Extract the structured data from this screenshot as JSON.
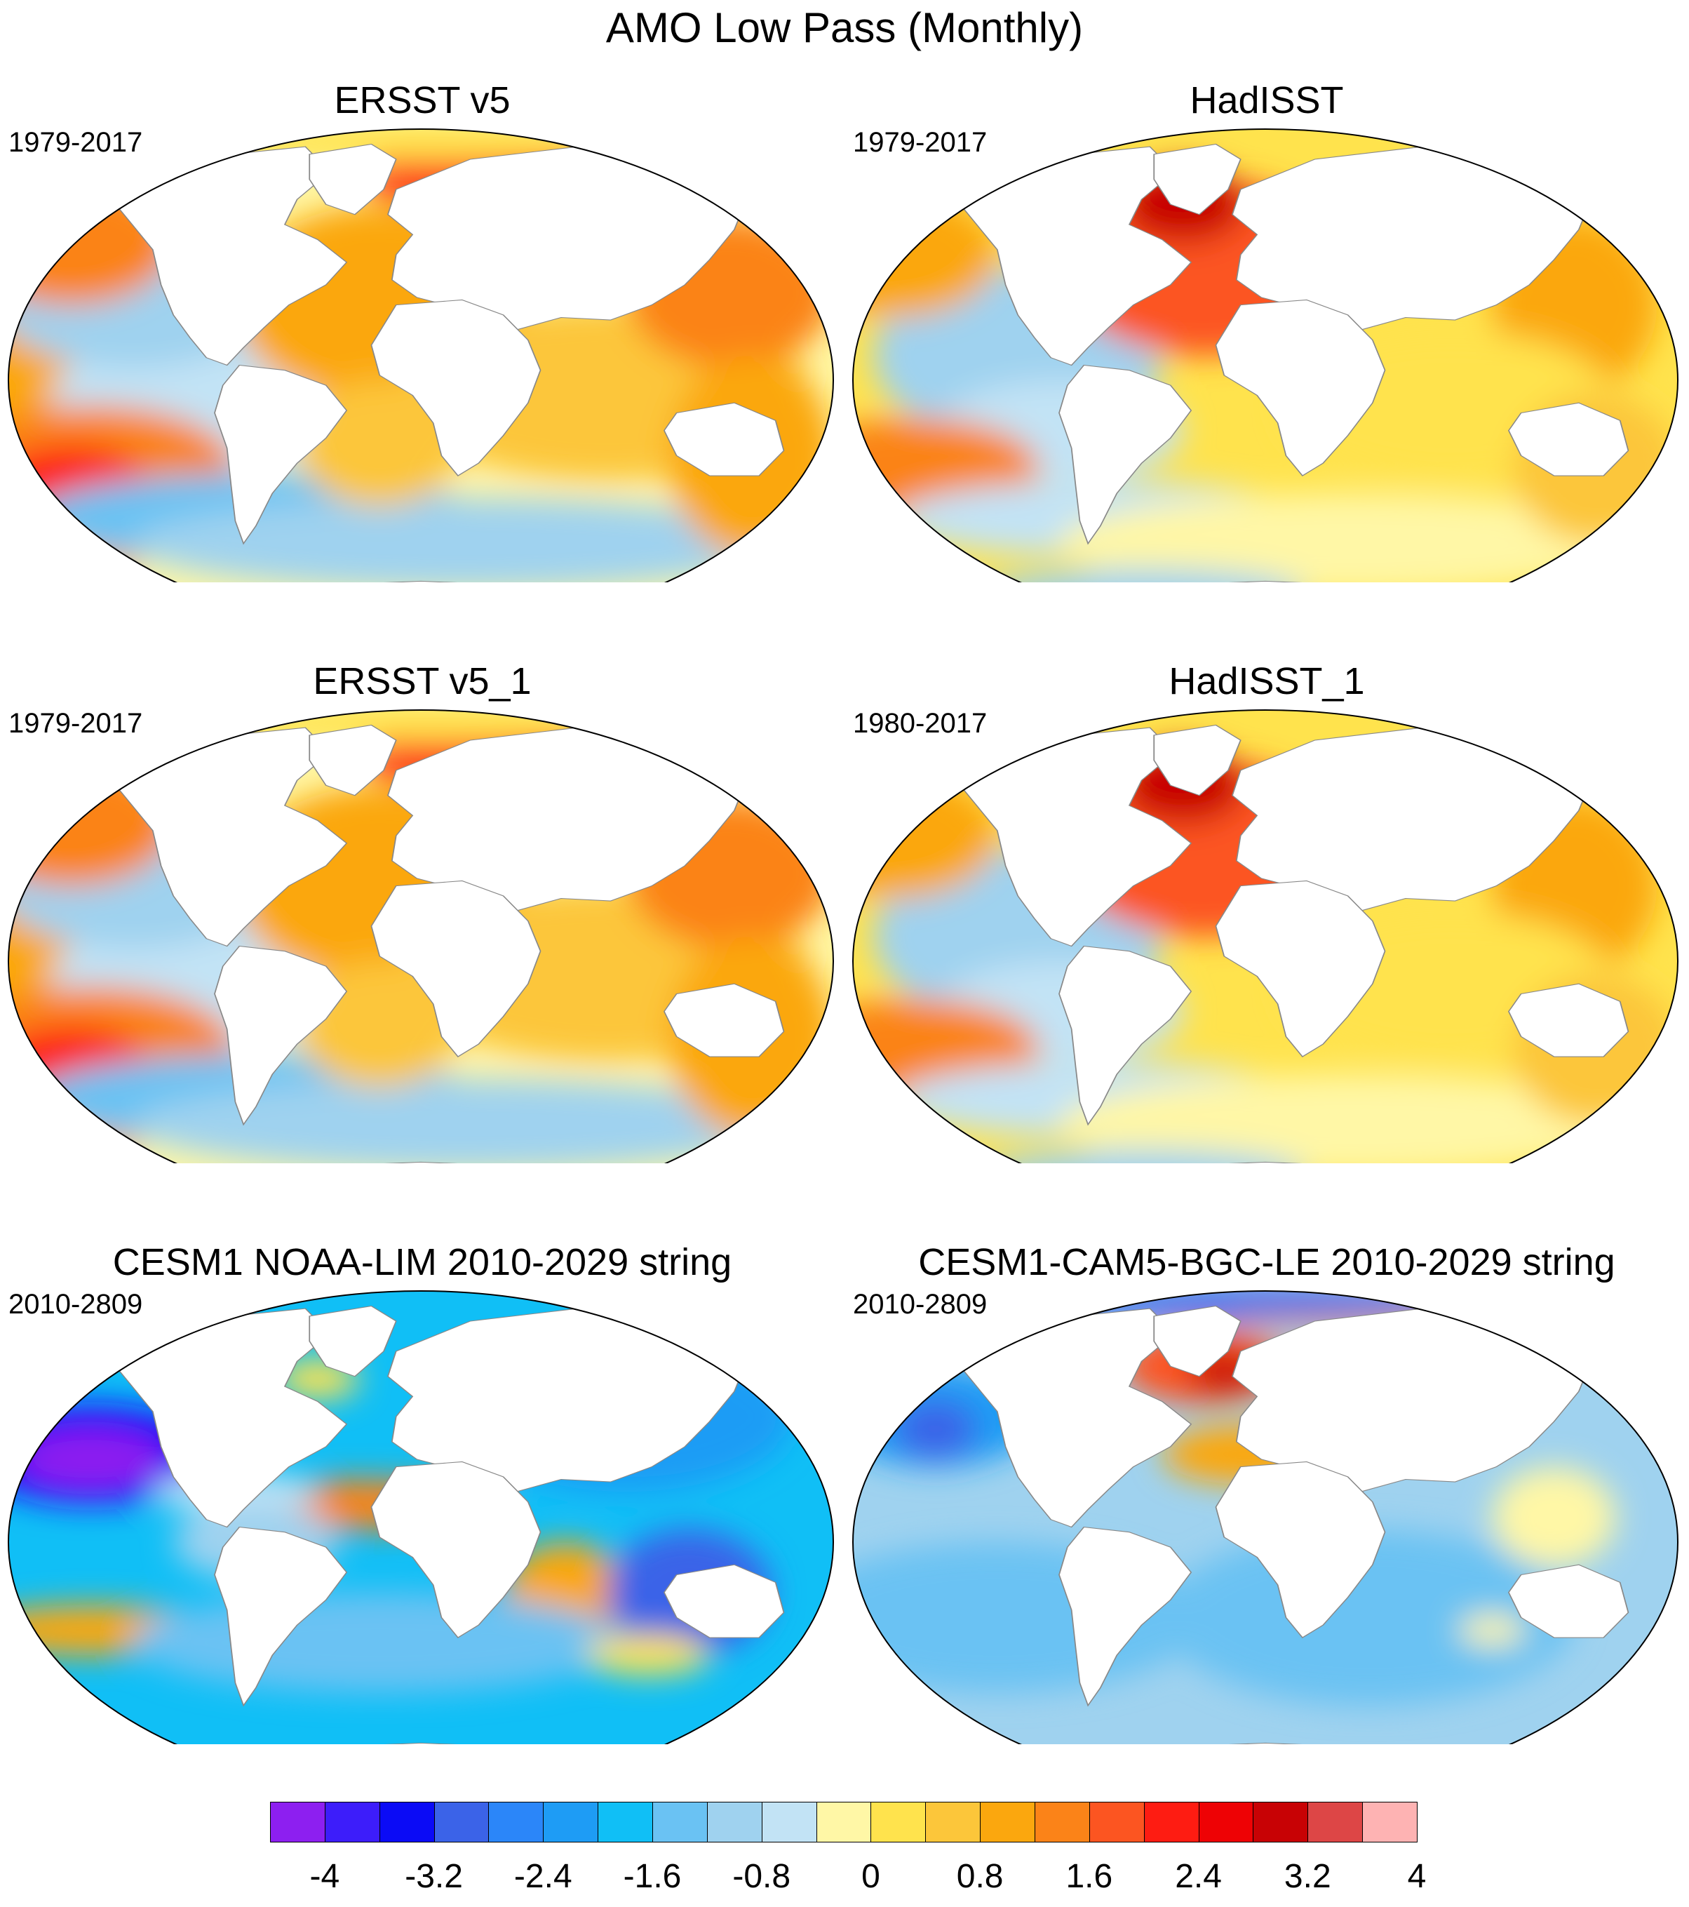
{
  "title": "AMO Low Pass (Monthly)",
  "panels": [
    {
      "title": "ERSST v5",
      "period": "1979-2017",
      "pattern": "ersst"
    },
    {
      "title": "HadISST",
      "period": "1979-2017",
      "pattern": "hadisst"
    },
    {
      "title": "ERSST v5_1",
      "period": "1979-2017",
      "pattern": "ersst"
    },
    {
      "title": "HadISST_1",
      "period": "1980-2017",
      "pattern": "hadisst"
    },
    {
      "title": "CESM1 NOAA-LIM 2010-2029 string",
      "period": "2010-2809",
      "pattern": "lim"
    },
    {
      "title": "CESM1-CAM5-BGC-LE 2010-2029 string",
      "period": "2010-2809",
      "pattern": "le"
    }
  ],
  "colorbar": {
    "colors": [
      "#8d1ff0",
      "#3d1dfa",
      "#0b0bf6",
      "#3b63e8",
      "#2b86f9",
      "#1e9cf5",
      "#10bff6",
      "#6ac2f3",
      "#9fd2ef",
      "#c2e3f5",
      "#fff7a6",
      "#ffe34d",
      "#fcc63a",
      "#fba70e",
      "#fb8318",
      "#fc5521",
      "#fe1c12",
      "#ee0205",
      "#c80205",
      "#dd4646",
      "#feb3b3"
    ],
    "labels": [
      "-4",
      "-3.2",
      "-2.4",
      "-1.6",
      "-0.8",
      "0",
      "0.8",
      "1.6",
      "2.4",
      "3.2",
      "4"
    ]
  }
}
